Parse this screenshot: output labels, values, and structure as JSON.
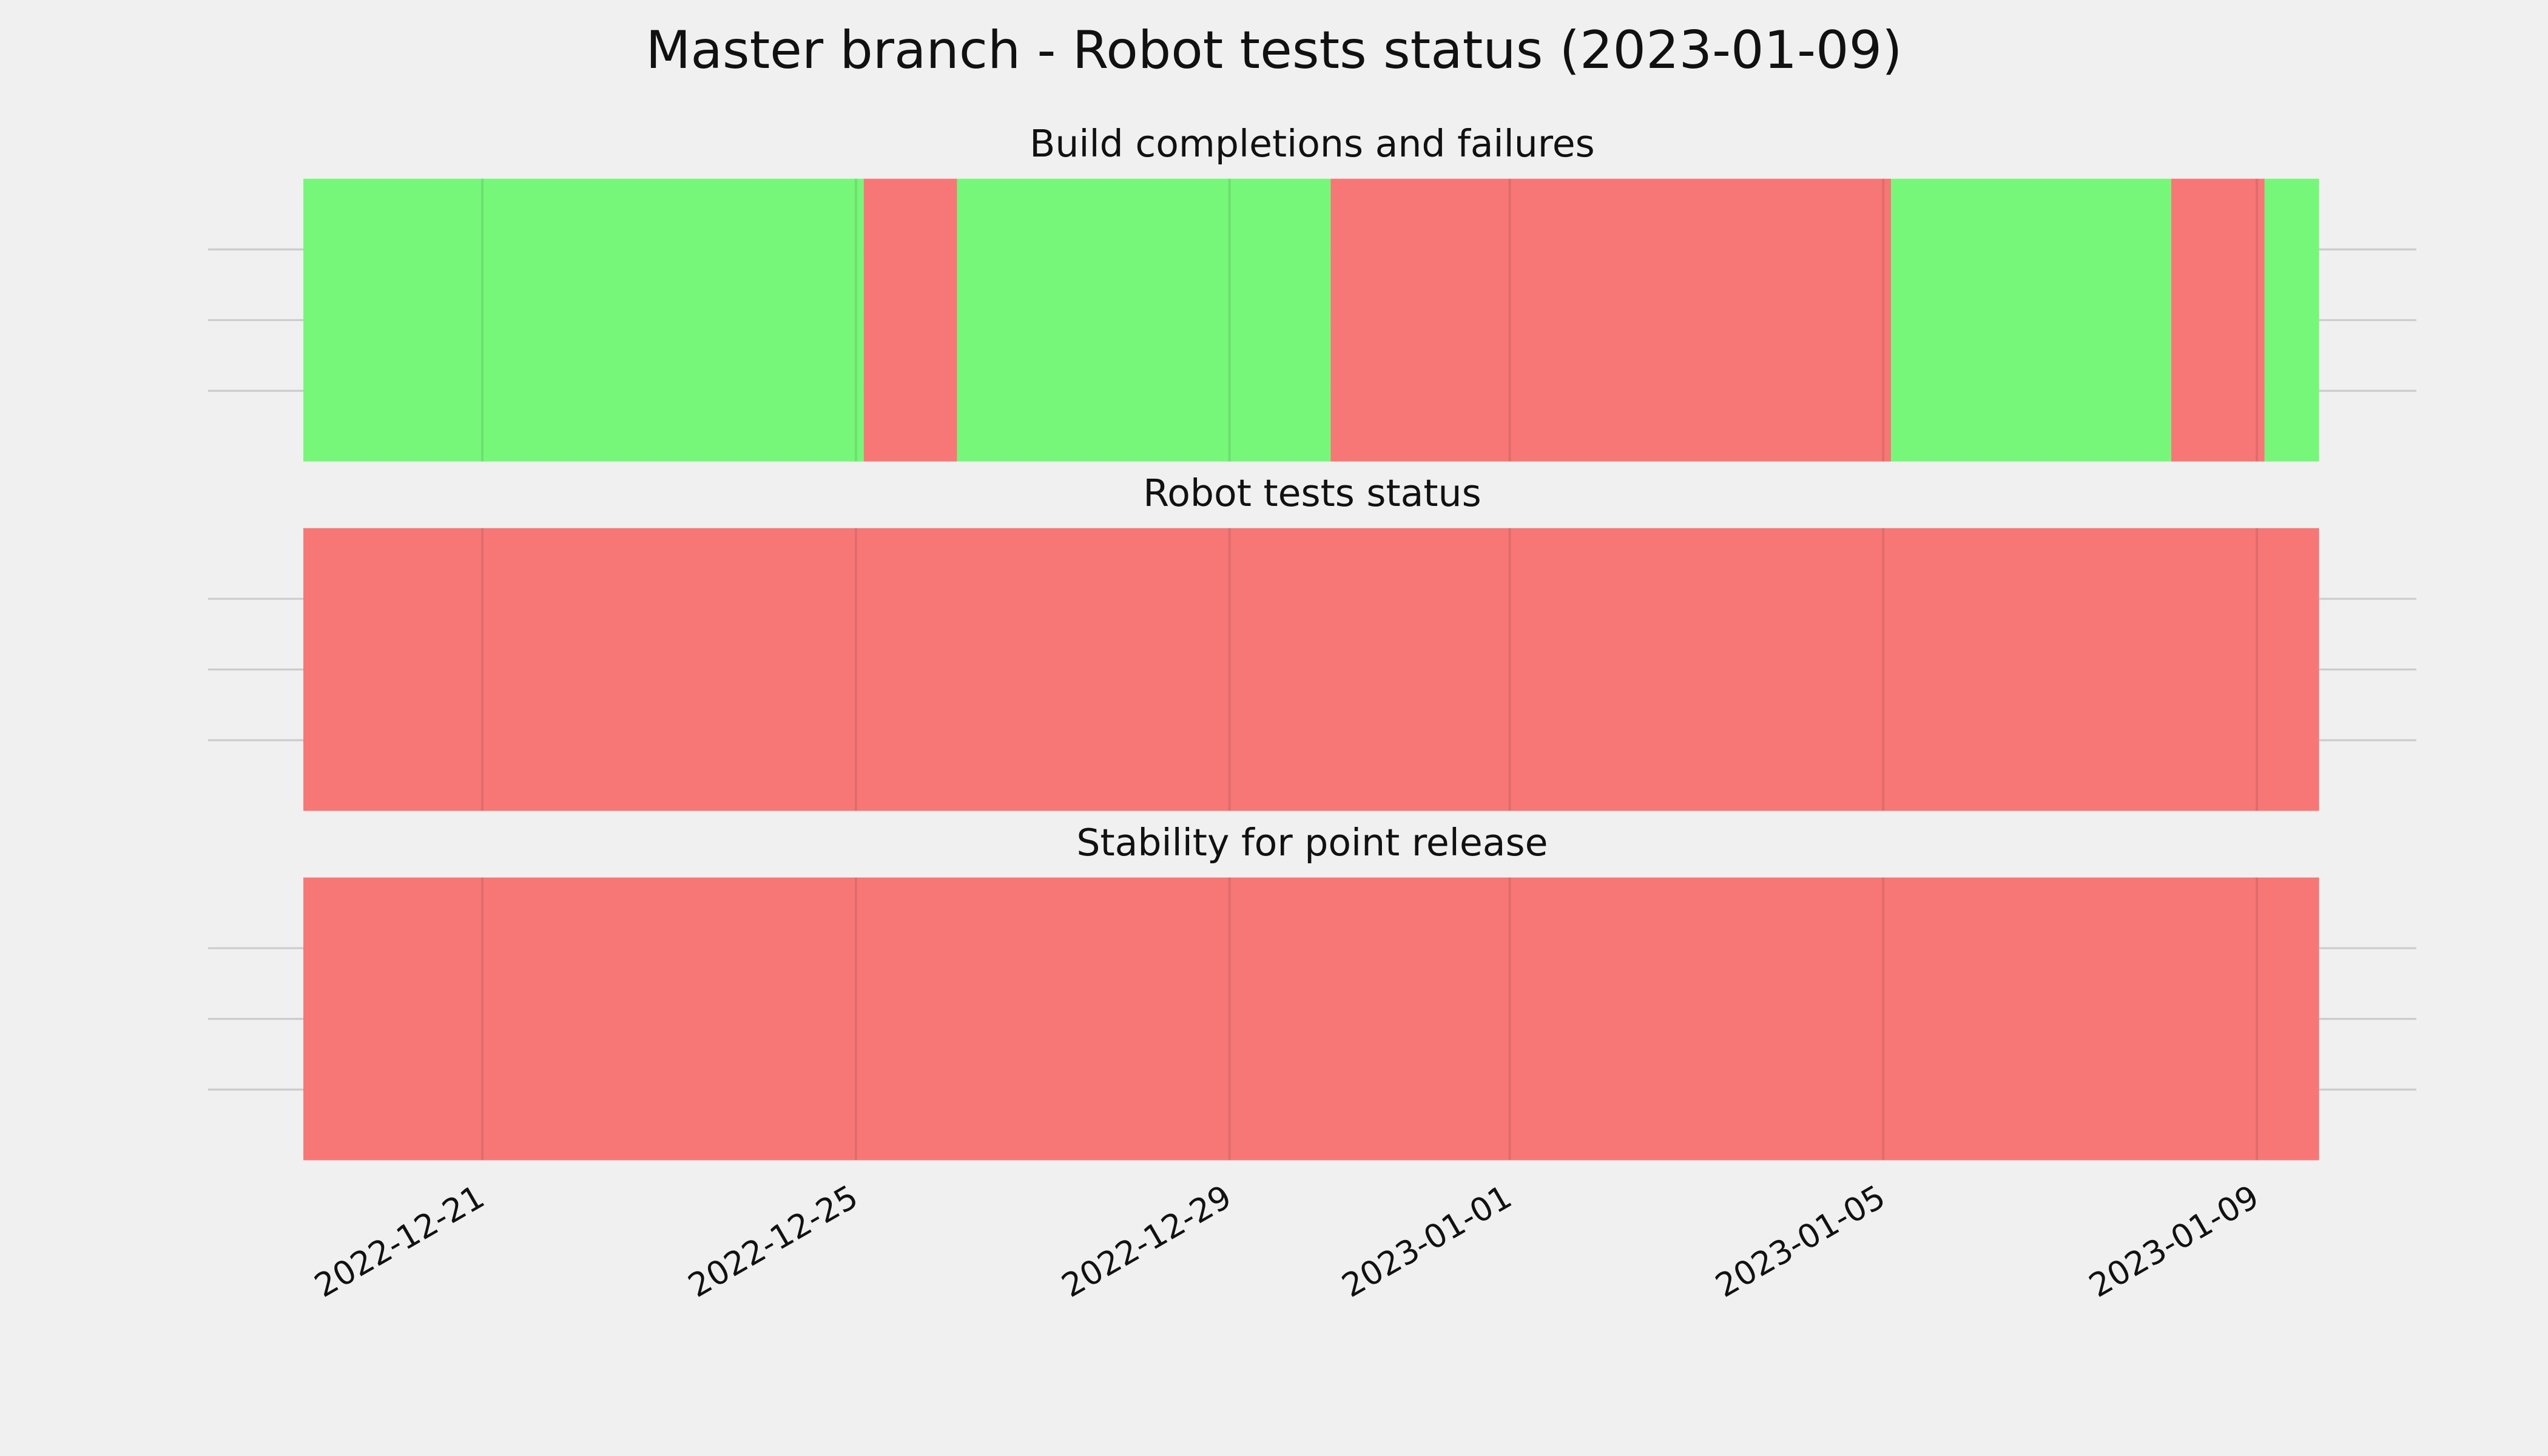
{
  "title": "Master branch - Robot tests status (2023-01-09)",
  "xlim": [
    "2022-12-18T01:30",
    "2023-01-10T17:00"
  ],
  "xticks": [
    "2022-12-21",
    "2022-12-25",
    "2022-12-29",
    "2023-01-01",
    "2023-01-05",
    "2023-01-09"
  ],
  "chart_data": [
    {
      "type": "timeline",
      "title": "Build completions and failures",
      "ylim": [
        0,
        1
      ],
      "yticks": [
        0.25,
        0.5,
        0.75
      ],
      "grid": true,
      "spans": [
        {
          "start": "2022-12-19T02:00",
          "end": "2022-12-25T02:00",
          "color": "#77f77a"
        },
        {
          "start": "2022-12-25T02:00",
          "end": "2022-12-26T02:00",
          "color": "#f77777"
        },
        {
          "start": "2022-12-26T02:00",
          "end": "2022-12-30T02:00",
          "color": "#77f77a"
        },
        {
          "start": "2022-12-30T02:00",
          "end": "2023-01-05T02:00",
          "color": "#f77777"
        },
        {
          "start": "2023-01-05T02:00",
          "end": "2023-01-08T02:00",
          "color": "#77f77a"
        },
        {
          "start": "2023-01-08T02:00",
          "end": "2023-01-09T02:00",
          "color": "#f77777"
        },
        {
          "start": "2023-01-09T02:00",
          "end": "2023-01-09T16:00",
          "color": "#77f77a"
        }
      ]
    },
    {
      "type": "timeline",
      "title": "Robot tests status",
      "ylim": [
        0,
        1
      ],
      "yticks": [
        0.25,
        0.5,
        0.75
      ],
      "grid": true,
      "spans": [
        {
          "start": "2022-12-19T02:00",
          "end": "2023-01-09T16:00",
          "color": "#f77777"
        }
      ]
    },
    {
      "type": "timeline",
      "title": "Stability for point release",
      "ylim": [
        0,
        1
      ],
      "yticks": [
        0.25,
        0.5,
        0.75
      ],
      "grid": true,
      "spans": [
        {
          "start": "2022-12-19T02:00",
          "end": "2023-01-09T16:00",
          "color": "#f77777"
        }
      ]
    }
  ]
}
